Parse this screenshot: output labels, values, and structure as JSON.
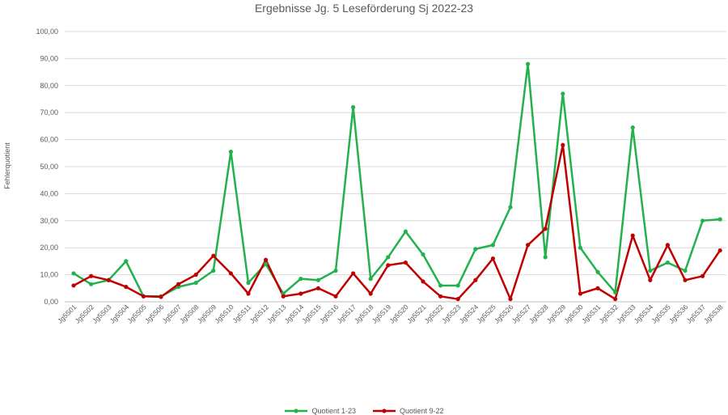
{
  "chart_data": {
    "type": "line",
    "title": "Ergebnisse Jg. 5 Leseförderung Sj 2022-23",
    "ylabel": "Fehlerquotient",
    "xlabel": "",
    "ylim": [
      0,
      100
    ],
    "ytick_step": 10,
    "ytick_labels": [
      "0,00",
      "10,00",
      "20,00",
      "30,00",
      "40,00",
      "50,00",
      "60,00",
      "70,00",
      "80,00",
      "90,00",
      "100,00"
    ],
    "grid": true,
    "legend_position": "bottom",
    "categories": [
      "Jg5S01",
      "Jg5S02",
      "Jg5S03",
      "Jg5S04",
      "Jg5S05",
      "Jg5S06",
      "Jg5S07",
      "Jg5S08",
      "Jg5S09",
      "Jg5S10",
      "Jg5S11",
      "Jg5S12",
      "Jg5S13",
      "Jg5S14",
      "Jg5S15",
      "Jg5S16",
      "Jg5S17",
      "Jg5S18",
      "Jg5S19",
      "Jg5S20",
      "Jg5S21",
      "Jg5S22",
      "Jg5S23",
      "Jg5S24",
      "Jg5S25",
      "Jg5S26",
      "Jg5S27",
      "Jg5S28",
      "Jg5S29",
      "Jg5S30",
      "Jg5S31",
      "Jg5S32",
      "Jg5S33",
      "Jg5S34",
      "Jg5S35",
      "Jg5S36",
      "Jg5S37",
      "Jg5S38"
    ],
    "series": [
      {
        "name": "Quotient 1-23",
        "color": "#22b14c",
        "values": [
          10.5,
          6.5,
          8.0,
          15.0,
          2.0,
          2.0,
          5.5,
          7.0,
          11.5,
          55.5,
          7.0,
          14.0,
          3.0,
          8.5,
          8.0,
          11.5,
          72.0,
          8.5,
          16.5,
          26.0,
          17.5,
          6.0,
          6.0,
          19.5,
          21.0,
          35.0,
          88.0,
          16.5,
          77.0,
          20.0,
          11.0,
          3.5,
          64.5,
          11.5,
          14.5,
          11.5,
          30.0,
          30.5
        ]
      },
      {
        "name": "Quotient 9-22",
        "color": "#c00000",
        "values": [
          6.0,
          9.5,
          8.0,
          5.5,
          2.0,
          1.8,
          6.5,
          10.0,
          17.0,
          10.5,
          3.0,
          15.5,
          2.0,
          3.0,
          5.0,
          2.0,
          10.5,
          3.0,
          13.5,
          14.5,
          7.5,
          2.0,
          1.0,
          8.0,
          16.0,
          1.0,
          21.0,
          27.0,
          58.0,
          3.0,
          5.0,
          1.0,
          24.5,
          8.0,
          21.0,
          8.0,
          9.5,
          19.0
        ]
      }
    ]
  }
}
